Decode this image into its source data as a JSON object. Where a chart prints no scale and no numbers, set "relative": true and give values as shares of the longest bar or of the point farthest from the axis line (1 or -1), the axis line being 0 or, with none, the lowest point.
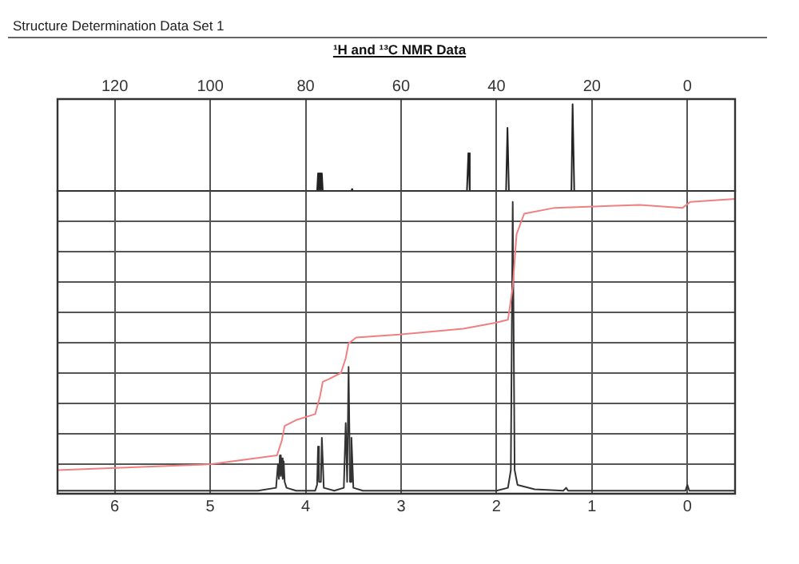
{
  "chart_data": [
    {
      "type": "line",
      "title": "¹H and ¹³C NMR Data",
      "annotations": [
        "Structure Determination Data Set 1"
      ],
      "relative": true,
      "grid": "x",
      "marker": "none",
      "tick_labels": "x",
      "legend": false,
      "color": "#222222",
      "xlim": [
        132,
        -10
      ],
      "xticks": [
        120,
        100,
        80,
        60,
        40,
        20,
        0
      ],
      "x": [
        132,
        78,
        77.6,
        77.4,
        77.2,
        77.0,
        76.8,
        76.6,
        76.4,
        70.4,
        70.3,
        70.2,
        46.2,
        45.9,
        45.6,
        38.0,
        37.7,
        37.4,
        24.3,
        24.05,
        23.95,
        23.7,
        -10
      ],
      "values": [
        0,
        0,
        0,
        0.21,
        0,
        0.21,
        0,
        0.21,
        0,
        0,
        0.03,
        0,
        0,
        0.44,
        0,
        0,
        0.73,
        0,
        0,
        1,
        1,
        0,
        0
      ]
    },
    {
      "type": "line",
      "relative": true,
      "grid": true,
      "marker": "none",
      "tick_labels": "x",
      "legend": false,
      "xlim": [
        6.6,
        -0.5
      ],
      "xticks": [
        6,
        5,
        4,
        3,
        2,
        1,
        0
      ],
      "series": [
        {
          "color": "#333333",
          "x": [
            6.6,
            4.5,
            4.31,
            4.29,
            4.28,
            4.27,
            4.26,
            4.25,
            4.24,
            4.23,
            4.22,
            4.2,
            4.1,
            3.9,
            3.88,
            3.87,
            3.86,
            3.84,
            3.83,
            3.81,
            3.7,
            3.6,
            3.58,
            3.565,
            3.55,
            3.535,
            3.52,
            3.5,
            3.4,
            2.0,
            1.88,
            1.85,
            1.83,
            1.81,
            1.78,
            1.6,
            1.3,
            1.27,
            1.25,
            0.02,
            0.0,
            -0.02,
            -0.5
          ],
          "values": [
            0.01,
            0.01,
            0.02,
            0.1,
            0.05,
            0.13,
            0.06,
            0.12,
            0.05,
            0.11,
            0.04,
            0.02,
            0.01,
            0.01,
            0.03,
            0.16,
            0.04,
            0.04,
            0.19,
            0.02,
            0.01,
            0.02,
            0.24,
            0.04,
            0.43,
            0.04,
            0.19,
            0.02,
            0.01,
            0.01,
            0.02,
            0.08,
            0.99,
            0.08,
            0.03,
            0.015,
            0.01,
            0.02,
            0.01,
            0.01,
            0.03,
            0.01,
            0.01
          ]
        },
        {
          "color": "#f08080",
          "x": [
            6.6,
            4.99,
            4.3,
            4.25,
            4.22,
            4.1,
            3.9,
            3.85,
            3.82,
            3.75,
            3.63,
            3.58,
            3.55,
            3.47,
            3.02,
            2.35,
            2.01,
            1.88,
            1.83,
            1.79,
            1.71,
            1.39,
            0.5,
            0.05,
            -0.03,
            -0.5
          ],
          "values": [
            0.08,
            0.1,
            0.13,
            0.18,
            0.23,
            0.25,
            0.27,
            0.33,
            0.38,
            0.39,
            0.41,
            0.46,
            0.51,
            0.53,
            0.54,
            0.56,
            0.58,
            0.59,
            0.7,
            0.88,
            0.95,
            0.97,
            0.98,
            0.97,
            0.99,
            1.0
          ]
        }
      ]
    }
  ]
}
